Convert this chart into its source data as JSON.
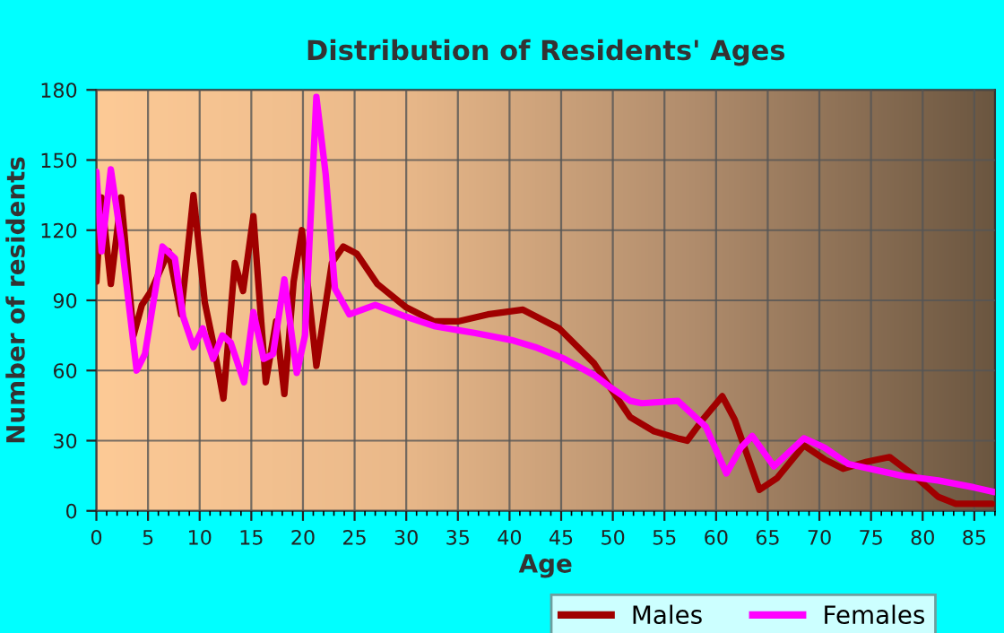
{
  "chart_data": {
    "type": "line",
    "title": "Distribution of Residents' Ages",
    "xlabel": "Age",
    "ylabel": "Number of residents",
    "xlim": [
      0,
      87
    ],
    "xticks": [
      0,
      5,
      10,
      15,
      20,
      25,
      30,
      35,
      40,
      45,
      50,
      55,
      60,
      65,
      70,
      75,
      80,
      85
    ],
    "ylim": [
      0,
      180
    ],
    "yticks": [
      0,
      30,
      60,
      90,
      120,
      150,
      180
    ],
    "grid": true,
    "legend": "bottom",
    "marker": "none",
    "line_style": "solid",
    "series": [
      {
        "name": "Males",
        "color": "#a00000",
        "x": [
          0,
          0.5,
          1.4,
          2.4,
          3.6,
          4.4,
          5.3,
          7,
          8.2,
          9.4,
          10.5,
          11.3,
          12.3,
          13.4,
          14.2,
          15.2,
          16.4,
          17.4,
          18.2,
          19.1,
          19.9,
          21.3,
          22.8,
          23.9,
          25.2,
          27.2,
          30,
          32.7,
          35,
          37.9,
          41.3,
          44.8,
          48.2,
          49.7,
          51.7,
          54,
          56.3,
          57.2,
          58.7,
          60.6,
          61.8,
          64.2,
          65.9,
          68.5,
          70.5,
          72.3,
          74.6,
          76.8,
          79.2,
          81.5,
          83.2,
          86.7
        ],
        "values": [
          98,
          134,
          97,
          134,
          75,
          88,
          94,
          111,
          84,
          135,
          89,
          72,
          48,
          106,
          94,
          126,
          55,
          81,
          50,
          98,
          120,
          62,
          106,
          113,
          110,
          97,
          87,
          81,
          81,
          84,
          86,
          78,
          63,
          53,
          40,
          34,
          31,
          30,
          39,
          49,
          39,
          9,
          14,
          28,
          22,
          18,
          21,
          23,
          15,
          6,
          3,
          3
        ]
      },
      {
        "name": "Females",
        "color": "#ff00ff",
        "x": [
          0,
          0.5,
          1.4,
          2.4,
          3.9,
          4.7,
          6.4,
          7.6,
          8.4,
          9.4,
          10.3,
          11.3,
          12.2,
          13,
          14.3,
          15.2,
          16.2,
          17.1,
          18.2,
          19.4,
          20.2,
          21.3,
          22.2,
          23.1,
          24.5,
          27,
          30,
          32.7,
          36.7,
          40.2,
          42.5,
          45.3,
          48.2,
          49.7,
          51.7,
          52.8,
          56.3,
          59,
          61,
          62.4,
          63.5,
          65.6,
          68.5,
          70.5,
          72.8,
          78,
          81.5,
          85,
          87
        ],
        "values": [
          145,
          111,
          146,
          116,
          60,
          67,
          113,
          108,
          83,
          70,
          78,
          65,
          75,
          72,
          55,
          85,
          65,
          67,
          99,
          59,
          75,
          177,
          144,
          95,
          84,
          88,
          83,
          79,
          76,
          73,
          70,
          65,
          58,
          53,
          47,
          46,
          47,
          36,
          16,
          27,
          32,
          19,
          31,
          27,
          20,
          15,
          13,
          10,
          8
        ]
      }
    ]
  }
}
